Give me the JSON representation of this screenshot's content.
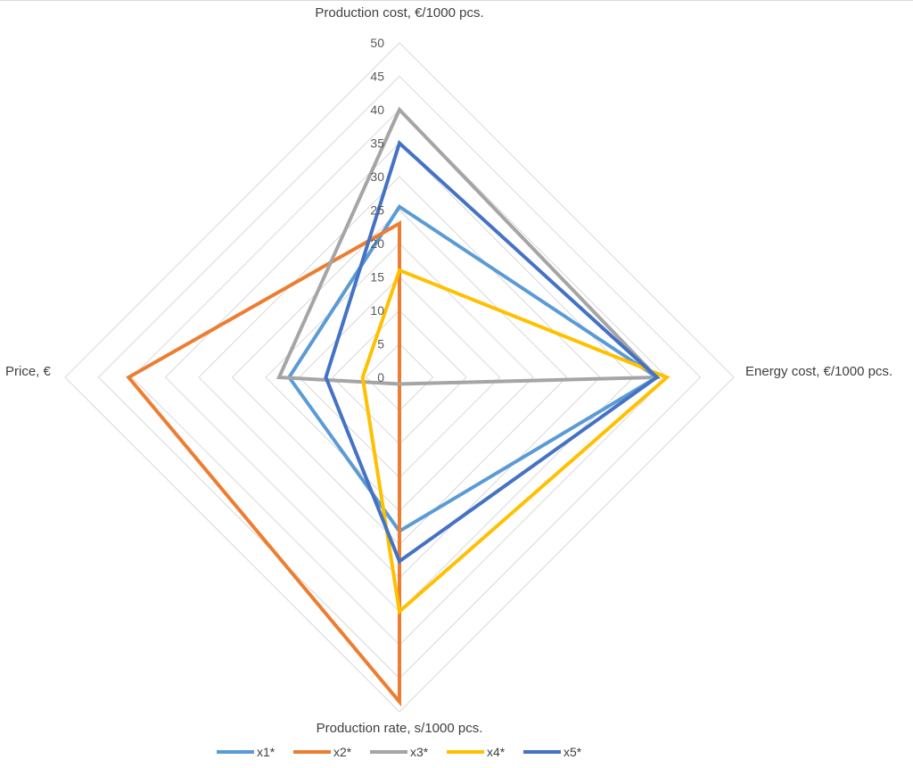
{
  "chart_data": {
    "type": "radar",
    "axes": [
      "Production cost, €/1000 pcs.",
      "Energy cost, €/1000 pcs.",
      "Production rate, s/1000 pcs.",
      "Price, €"
    ],
    "rlim": [
      0,
      50
    ],
    "ticks": [
      "0",
      "5",
      "10",
      "15",
      "20",
      "25",
      "30",
      "35",
      "40",
      "45",
      "50"
    ],
    "tick_values": [
      0,
      5,
      10,
      15,
      20,
      25,
      30,
      35,
      40,
      45,
      50
    ],
    "grid": true,
    "legend_position": "bottom",
    "series": [
      {
        "name": "x1*",
        "color": "#5b9bd5",
        "values": [
          25.5,
          38.5,
          23,
          16.5
        ]
      },
      {
        "name": "x2*",
        "color": "#ed7d31",
        "values": [
          23,
          0,
          48.5,
          40.5
        ]
      },
      {
        "name": "x3*",
        "color": "#a5a5a5",
        "values": [
          40,
          38.5,
          1,
          18
        ]
      },
      {
        "name": "x4*",
        "color": "#ffc000",
        "values": [
          16,
          40,
          35,
          5.5
        ]
      },
      {
        "name": "x5*",
        "color": "#4472c4",
        "values": [
          35,
          38.5,
          27.5,
          11
        ]
      }
    ]
  }
}
